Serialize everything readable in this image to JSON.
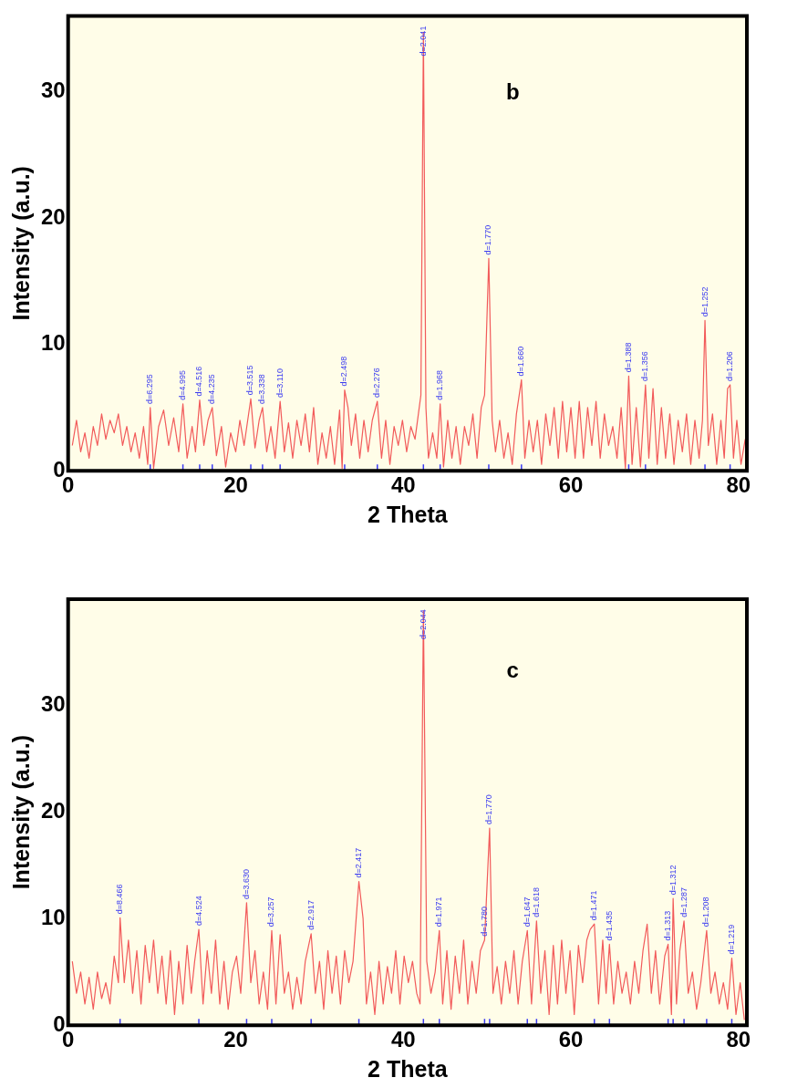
{
  "chart_data": [
    {
      "type": "line",
      "xlabel": "2 Theta",
      "ylabel": "Intensity (a.u.)",
      "xlim": [
        0,
        81
      ],
      "ylim": [
        0,
        36
      ],
      "xticks": [
        0,
        20,
        40,
        60,
        80
      ],
      "yticks": [
        0,
        10,
        20,
        30
      ],
      "x": [
        0.5,
        1,
        1.5,
        2,
        2.5,
        3,
        3.5,
        4,
        4.5,
        5,
        5.5,
        6,
        6.5,
        7,
        7.5,
        8,
        8.5,
        9,
        9.5,
        9.8,
        10.2,
        10.8,
        11.4,
        12,
        12.6,
        13.2,
        13.7,
        14.2,
        14.8,
        15.2,
        15.7,
        16.2,
        16.7,
        17.2,
        17.7,
        18.3,
        18.8,
        19.4,
        20,
        20.5,
        21,
        21.8,
        22.3,
        22.8,
        23.2,
        23.7,
        24.2,
        24.7,
        25.3,
        25.8,
        26.3,
        26.8,
        27.3,
        27.8,
        28.3,
        28.8,
        29.3,
        29.8,
        30.3,
        30.8,
        31.3,
        31.8,
        32.4,
        32.7,
        33,
        33.4,
        33.8,
        34.3,
        34.8,
        35.3,
        35.8,
        36.3,
        36.9,
        37.4,
        37.9,
        38.4,
        38.9,
        39.4,
        39.9,
        40.4,
        40.9,
        41.4,
        41.8,
        42.1,
        42.4,
        42.7,
        43,
        43.5,
        44,
        44.4,
        44.8,
        45.3,
        45.8,
        46.3,
        46.8,
        47.3,
        47.8,
        48.3,
        48.8,
        49.3,
        49.7,
        50.2,
        50.6,
        51,
        51.5,
        52,
        52.5,
        53,
        53.5,
        54.1,
        54.5,
        55,
        55.5,
        56,
        56.5,
        57,
        57.5,
        58,
        58.5,
        59,
        59.5,
        60,
        60.5,
        61,
        61.5,
        62,
        62.5,
        63,
        63.5,
        64,
        64.5,
        65,
        65.5,
        66,
        66.5,
        66.9,
        67.3,
        67.8,
        68.3,
        68.9,
        69.3,
        69.8,
        70.3,
        70.8,
        71.3,
        71.8,
        72.3,
        72.8,
        73.3,
        73.8,
        74.3,
        74.8,
        75.3,
        75.7,
        76,
        76.4,
        76.9,
        77.4,
        77.9,
        78.3,
        78.7,
        79,
        79.4,
        79.8,
        80.3,
        80.8
      ],
      "series": [
        {
          "color": "#f25a5a",
          "values": [
            2,
            4,
            1.5,
            3,
            1,
            3.5,
            2,
            4.5,
            2.5,
            4,
            3,
            4.5,
            2,
            3.5,
            1.5,
            3,
            1,
            3.5,
            0.5,
            5,
            0.2,
            3.5,
            4.8,
            2,
            4.2,
            1.5,
            5.3,
            1,
            3.5,
            1.5,
            5.6,
            2,
            4,
            5,
            1.2,
            3.5,
            0.3,
            3,
            1.5,
            4,
            2,
            5.7,
            1.8,
            4,
            5,
            1.5,
            3.5,
            1,
            5.5,
            1.5,
            3.8,
            1,
            4,
            2,
            4.5,
            1.5,
            5,
            0.5,
            3,
            1,
            3.5,
            0.5,
            4.8,
            0.2,
            6.4,
            5,
            2,
            4.5,
            1,
            4,
            1.5,
            4,
            5.5,
            1,
            4,
            0.5,
            3.5,
            2,
            4,
            1.5,
            3.5,
            2.5,
            4.5,
            6,
            34.7,
            5,
            1,
            3,
            1,
            5.3,
            0.3,
            4,
            1,
            3.5,
            0.5,
            3.5,
            2,
            4.5,
            1,
            5,
            6,
            16.8,
            4,
            1.5,
            4,
            1,
            3,
            0.5,
            4.5,
            7.2,
            1,
            4,
            1.5,
            4,
            0.5,
            4.5,
            2,
            5,
            1,
            5.5,
            1.5,
            5,
            1,
            5.5,
            1,
            5,
            2,
            5.5,
            1,
            4.5,
            2,
            3.5,
            1,
            5,
            0.2,
            7.5,
            0.5,
            5,
            0.3,
            6.8,
            1,
            6.5,
            0.5,
            5,
            1,
            4.5,
            0.5,
            4,
            1.5,
            4.5,
            0.5,
            4,
            1,
            4,
            11.9,
            2,
            4.5,
            0.5,
            4,
            1,
            6.5,
            6.8,
            1,
            4,
            0.5,
            2.5
          ]
        }
      ],
      "annotations": [
        "b",
        {
          "text": "d=6.295",
          "x": 9.8,
          "y": 5
        },
        {
          "text": "d=4.995",
          "x": 13.7,
          "y": 5.3
        },
        {
          "text": "d=4.516",
          "x": 15.7,
          "y": 5.6
        },
        {
          "text": "d=4.235",
          "x": 17.2,
          "y": 5
        },
        {
          "text": "d=3.515",
          "x": 21.8,
          "y": 5.7
        },
        {
          "text": "d=3.338",
          "x": 23.2,
          "y": 5
        },
        {
          "text": "d=3.110",
          "x": 25.3,
          "y": 5.5
        },
        {
          "text": "d=2.498",
          "x": 33,
          "y": 6.4
        },
        {
          "text": "d=2.276",
          "x": 36.9,
          "y": 5.5
        },
        {
          "text": "d=2.041",
          "x": 42.4,
          "y": 34.7
        },
        {
          "text": "d=1.968",
          "x": 44.4,
          "y": 5.3
        },
        {
          "text": "d=1.770",
          "x": 50.2,
          "y": 16.8
        },
        {
          "text": "d=1.660",
          "x": 54.1,
          "y": 7.2
        },
        {
          "text": "d=1.388",
          "x": 66.9,
          "y": 7.5
        },
        {
          "text": "d=1.356",
          "x": 68.9,
          "y": 6.8
        },
        {
          "text": "d=1.252",
          "x": 76,
          "y": 11.9
        },
        {
          "text": "d=1.206",
          "x": 79,
          "y": 6.8
        }
      ]
    },
    {
      "type": "line",
      "xlabel": "2 Theta",
      "ylabel": "Intensity (a.u.)",
      "xlim": [
        0,
        81
      ],
      "ylim": [
        0,
        40
      ],
      "xticks": [
        0,
        20,
        40,
        60,
        80
      ],
      "yticks": [
        0,
        10,
        20,
        30
      ],
      "x": [
        0.5,
        1,
        1.5,
        2,
        2.5,
        3,
        3.5,
        4,
        4.5,
        5,
        5.5,
        6,
        6.2,
        6.7,
        7.2,
        7.7,
        8.2,
        8.7,
        9.2,
        9.7,
        10.2,
        10.7,
        11.2,
        11.7,
        12.2,
        12.7,
        13.2,
        13.7,
        14.2,
        14.7,
        15.1,
        15.6,
        16.1,
        16.6,
        17.1,
        17.6,
        18.1,
        18.6,
        19.1,
        19.6,
        20.1,
        20.6,
        21.3,
        21.8,
        22.3,
        22.8,
        23.3,
        23.8,
        24.3,
        24.8,
        25.3,
        25.8,
        26.3,
        26.8,
        27.3,
        27.8,
        28.3,
        29,
        29.5,
        30,
        30.5,
        31,
        31.5,
        32,
        32.5,
        33,
        33.5,
        34,
        34.7,
        35.2,
        35.6,
        36.1,
        36.6,
        37.1,
        37.6,
        38.1,
        38.6,
        39.1,
        39.6,
        40.1,
        40.6,
        41.1,
        41.6,
        42,
        42.4,
        42.8,
        43.3,
        43.8,
        44.3,
        44.7,
        45.2,
        45.7,
        46.2,
        46.7,
        47.2,
        47.7,
        48.2,
        48.7,
        49.2,
        49.7,
        50.3,
        50.7,
        51.2,
        51.7,
        52.2,
        52.7,
        53.2,
        53.7,
        54.2,
        54.8,
        55.3,
        55.9,
        56.4,
        56.9,
        57.4,
        57.9,
        58.4,
        58.9,
        59.4,
        59.9,
        60.4,
        60.9,
        61.4,
        61.9,
        62.3,
        62.8,
        63.3,
        63.8,
        64.2,
        64.6,
        65.1,
        65.6,
        66.1,
        66.6,
        67.1,
        67.6,
        68.1,
        68.6,
        69.1,
        69.6,
        70.1,
        70.6,
        71.2,
        71.6,
        72,
        72.2,
        72.6,
        73,
        73.5,
        74,
        74.5,
        75,
        75.5,
        76.2,
        76.7,
        77.2,
        77.7,
        78.2,
        78.7,
        79.2,
        79.7,
        80.2,
        80.7
      ],
      "series": [
        {
          "color": "#f25a5a",
          "values": [
            6,
            3,
            5,
            2,
            4.5,
            1.5,
            5,
            2.5,
            4,
            2,
            6.5,
            4,
            10.1,
            4,
            8,
            3,
            7,
            2,
            7.5,
            4,
            8,
            3,
            6.5,
            2,
            7,
            1,
            6,
            2,
            7.5,
            3,
            6,
            9,
            2,
            7,
            3,
            8,
            2,
            6,
            1.5,
            5,
            6.5,
            3,
            11.5,
            4,
            7,
            2,
            5,
            1.5,
            8.9,
            2,
            8.5,
            3,
            5,
            1.5,
            4.5,
            2,
            6,
            8.6,
            3,
            6,
            1.5,
            7,
            3,
            6.5,
            2,
            7,
            4,
            6,
            13.5,
            10,
            2,
            5,
            1,
            6,
            2,
            5.5,
            3,
            7,
            2,
            6.5,
            4,
            6,
            3,
            2,
            38.9,
            6,
            3,
            5,
            8.9,
            2,
            7,
            1.5,
            6.5,
            3,
            8,
            2,
            6,
            3,
            7,
            8,
            18.5,
            3,
            5.5,
            2,
            6,
            3,
            7,
            2,
            6,
            8.9,
            2,
            9.8,
            3,
            7,
            1,
            7.5,
            2,
            8,
            3,
            7,
            1,
            7.5,
            4,
            8,
            9,
            9.5,
            2,
            8,
            3,
            7.6,
            2,
            6,
            3,
            5,
            2,
            6,
            3,
            7,
            9.5,
            3,
            7,
            2,
            6.5,
            7.6,
            1,
            11.9,
            2,
            7,
            9.8,
            3,
            5,
            1.5,
            4,
            8.9,
            3,
            5,
            2,
            4,
            1.5,
            6.3,
            1,
            4,
            0.5
          ]
        }
      ],
      "annotations": [
        "c",
        {
          "text": "d=8.466",
          "x": 6.2,
          "y": 10.1
        },
        {
          "text": "d=4.524",
          "x": 15.6,
          "y": 9
        },
        {
          "text": "d=3.630",
          "x": 21.3,
          "y": 11.5
        },
        {
          "text": "d=3.257",
          "x": 24.3,
          "y": 8.9
        },
        {
          "text": "d=2.917",
          "x": 29,
          "y": 8.6
        },
        {
          "text": "d=2.417",
          "x": 34.7,
          "y": 13.5
        },
        {
          "text": "d=2.044",
          "x": 42.4,
          "y": 38.9
        },
        {
          "text": "d=1.971",
          "x": 44.3,
          "y": 8.9
        },
        {
          "text": "d=1.780",
          "x": 49.7,
          "y": 8
        },
        {
          "text": "d=1.770",
          "x": 50.3,
          "y": 18.5
        },
        {
          "text": "d=1.647",
          "x": 54.8,
          "y": 8.9
        },
        {
          "text": "d=1.618",
          "x": 55.9,
          "y": 9.8
        },
        {
          "text": "d=1.471",
          "x": 62.8,
          "y": 9.5
        },
        {
          "text": "d=1.435",
          "x": 64.6,
          "y": 7.6
        },
        {
          "text": "d=1.313",
          "x": 71.6,
          "y": 7.6
        },
        {
          "text": "d=1.312",
          "x": 72.2,
          "y": 11.9
        },
        {
          "text": "d=1.287",
          "x": 73.5,
          "y": 9.8
        },
        {
          "text": "d=1.208",
          "x": 76.2,
          "y": 8.9
        },
        {
          "text": "d=1.219",
          "x": 79.2,
          "y": 6.3
        }
      ]
    }
  ]
}
